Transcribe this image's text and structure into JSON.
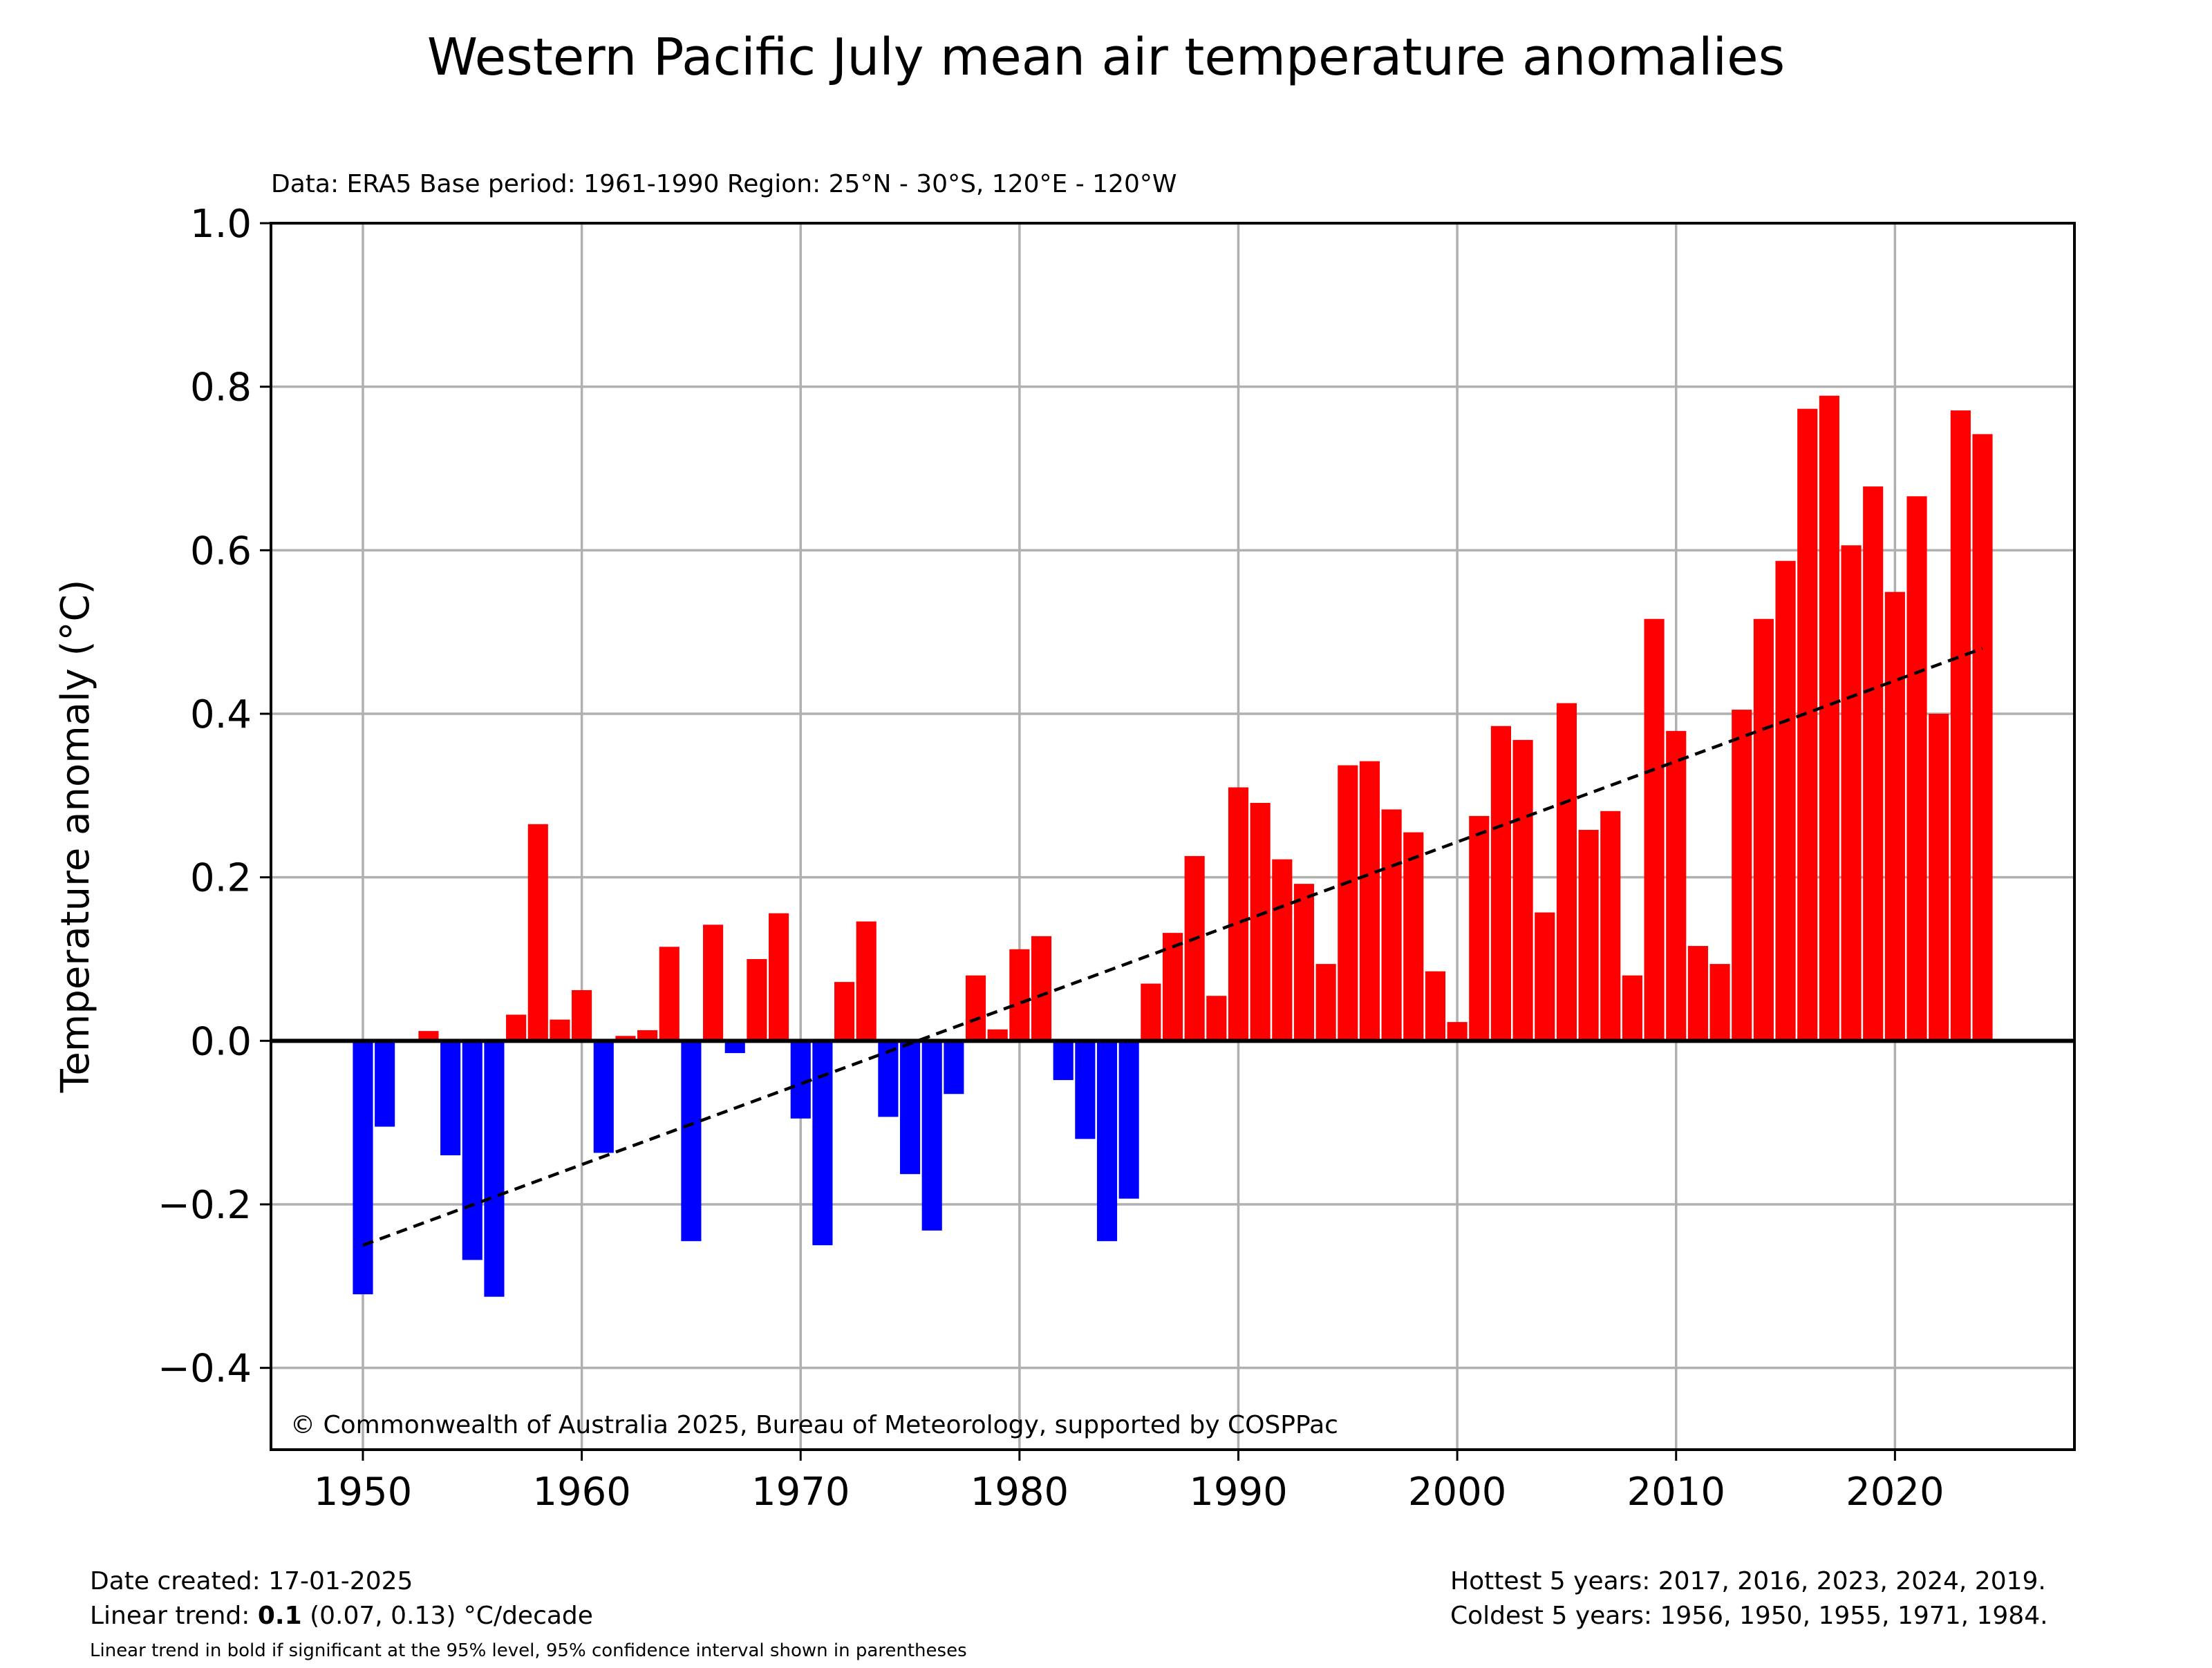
{
  "chart_data": {
    "type": "bar",
    "title": "Western Pacific July mean air temperature anomalies",
    "subtitle": "Data: ERA5  Base period: 1961-1990  Region: 25°N - 30°S, 120°E - 120°W",
    "ylabel": "Temperature anomaly (°C)",
    "xlabel": "",
    "xlim": [
      1945.8,
      2028.2
    ],
    "ylim": [
      -0.5,
      1.0
    ],
    "xticks": [
      1950,
      1960,
      1970,
      1980,
      1990,
      2000,
      2010,
      2020
    ],
    "yticks": [
      -0.4,
      -0.2,
      0.0,
      0.2,
      0.4,
      0.6,
      0.8,
      1.0
    ],
    "ytick_labels": [
      "−0.4",
      "−0.2",
      "0.0",
      "0.2",
      "0.4",
      "0.6",
      "0.8",
      "1.0"
    ],
    "grid": true,
    "positive_color": "#ff0000",
    "negative_color": "#0000ff",
    "trend_color": "#000000",
    "years": [
      1950,
      1951,
      1952,
      1953,
      1954,
      1955,
      1956,
      1957,
      1958,
      1959,
      1960,
      1961,
      1962,
      1963,
      1964,
      1965,
      1966,
      1967,
      1968,
      1969,
      1970,
      1971,
      1972,
      1973,
      1974,
      1975,
      1976,
      1977,
      1978,
      1979,
      1980,
      1981,
      1982,
      1983,
      1984,
      1985,
      1986,
      1987,
      1988,
      1989,
      1990,
      1991,
      1992,
      1993,
      1994,
      1995,
      1996,
      1997,
      1998,
      1999,
      2000,
      2001,
      2002,
      2003,
      2004,
      2005,
      2006,
      2007,
      2008,
      2009,
      2010,
      2011,
      2012,
      2013,
      2014,
      2015,
      2016,
      2017,
      2018,
      2019,
      2020,
      2021,
      2022,
      2023,
      2024
    ],
    "values": [
      -0.31,
      -0.105,
      0.0,
      0.012,
      -0.14,
      -0.268,
      -0.313,
      0.032,
      0.265,
      0.026,
      0.062,
      -0.137,
      0.006,
      0.013,
      0.115,
      -0.245,
      0.142,
      -0.015,
      0.1,
      0.156,
      -0.095,
      -0.25,
      0.072,
      0.146,
      -0.093,
      -0.163,
      -0.232,
      -0.065,
      0.08,
      0.014,
      0.112,
      0.128,
      -0.048,
      -0.12,
      -0.245,
      -0.193,
      0.07,
      0.132,
      0.226,
      0.055,
      0.31,
      0.291,
      0.222,
      0.192,
      0.094,
      0.337,
      0.342,
      0.283,
      0.255,
      0.085,
      0.023,
      0.275,
      0.385,
      0.368,
      0.157,
      0.413,
      0.258,
      0.281,
      0.08,
      0.516,
      0.379,
      0.116,
      0.094,
      0.405,
      0.516,
      0.587,
      0.773,
      0.789,
      0.606,
      0.678,
      0.549,
      0.666,
      0.4,
      0.771,
      0.742
    ],
    "trend": {
      "x": [
        1950,
        2024
      ],
      "y": [
        -0.25,
        0.48
      ]
    },
    "credit": "© Commonwealth of Australia 2025, Bureau of Meteorology, supported by COSPPac"
  },
  "footer": {
    "date_created": "Date created: 17-01-2025",
    "trend_prefix": "Linear trend: ",
    "trend_value": "0.1",
    "trend_suffix": " (0.07, 0.13) °C/decade",
    "trend_note": "Linear trend in bold if significant at the 95% level, 95% confidence interval shown in parentheses",
    "hottest": "Hottest 5 years: 2017, 2016, 2023, 2024, 2019.",
    "coldest": "Coldest 5 years: 1956, 1950, 1955, 1971, 1984."
  }
}
